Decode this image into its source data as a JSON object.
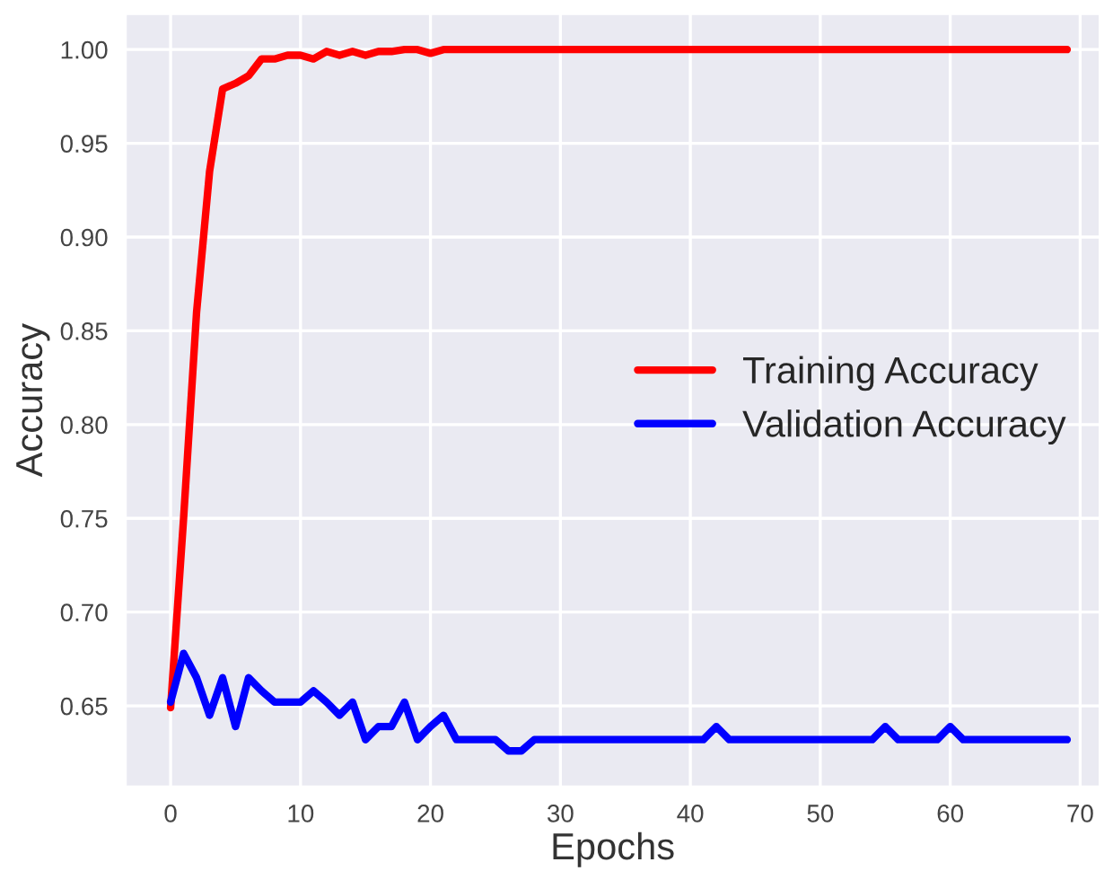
{
  "chart_data": {
    "type": "line",
    "xlabel": "Epochs",
    "ylabel": "Accuracy",
    "x": [
      0,
      1,
      2,
      3,
      4,
      5,
      6,
      7,
      8,
      9,
      10,
      11,
      12,
      13,
      14,
      15,
      16,
      17,
      18,
      19,
      20,
      21,
      22,
      23,
      24,
      25,
      26,
      27,
      28,
      29,
      30,
      31,
      32,
      33,
      34,
      35,
      36,
      37,
      38,
      39,
      40,
      41,
      42,
      43,
      44,
      45,
      46,
      47,
      48,
      49,
      50,
      51,
      52,
      53,
      54,
      55,
      56,
      57,
      58,
      59,
      60,
      61,
      62,
      63,
      64,
      65,
      66,
      67,
      68,
      69
    ],
    "series": [
      {
        "name": "Training Accuracy",
        "color": "#ff0000",
        "values": [
          0.649,
          0.75,
          0.86,
          0.935,
          0.979,
          0.982,
          0.986,
          0.995,
          0.995,
          0.997,
          0.997,
          0.995,
          0.999,
          0.997,
          0.999,
          0.997,
          0.999,
          0.999,
          1.0,
          1.0,
          0.998,
          1.0,
          1.0,
          1.0,
          1.0,
          1.0,
          1.0,
          1.0,
          1.0,
          1.0,
          1.0,
          1.0,
          1.0,
          1.0,
          1.0,
          1.0,
          1.0,
          1.0,
          1.0,
          1.0,
          1.0,
          1.0,
          1.0,
          1.0,
          1.0,
          1.0,
          1.0,
          1.0,
          1.0,
          1.0,
          1.0,
          1.0,
          1.0,
          1.0,
          1.0,
          1.0,
          1.0,
          1.0,
          1.0,
          1.0,
          1.0,
          1.0,
          1.0,
          1.0,
          1.0,
          1.0,
          1.0,
          1.0,
          1.0,
          1.0
        ]
      },
      {
        "name": "Validation Accuracy",
        "color": "#0000ff",
        "values": [
          0.652,
          0.678,
          0.665,
          0.645,
          0.665,
          0.639,
          0.665,
          0.658,
          0.652,
          0.652,
          0.652,
          0.658,
          0.652,
          0.645,
          0.652,
          0.632,
          0.639,
          0.639,
          0.652,
          0.632,
          0.639,
          0.645,
          0.632,
          0.632,
          0.632,
          0.632,
          0.626,
          0.626,
          0.632,
          0.632,
          0.632,
          0.632,
          0.632,
          0.632,
          0.632,
          0.632,
          0.632,
          0.632,
          0.632,
          0.632,
          0.632,
          0.632,
          0.639,
          0.632,
          0.632,
          0.632,
          0.632,
          0.632,
          0.632,
          0.632,
          0.632,
          0.632,
          0.632,
          0.632,
          0.632,
          0.639,
          0.632,
          0.632,
          0.632,
          0.632,
          0.639,
          0.632,
          0.632,
          0.632,
          0.632,
          0.632,
          0.632,
          0.632,
          0.632,
          0.632
        ]
      }
    ],
    "xlim": [
      -3.45,
      71.5
    ],
    "ylim": [
      0.607,
      1.019
    ],
    "xticks": [
      0,
      10,
      20,
      30,
      40,
      50,
      60,
      70
    ],
    "yticks": [
      {
        "value": 0.65,
        "label": "0.65"
      },
      {
        "value": 0.7,
        "label": "0.70"
      },
      {
        "value": 0.75,
        "label": "0.75"
      },
      {
        "value": 0.8,
        "label": "0.80"
      },
      {
        "value": 0.85,
        "label": "0.85"
      },
      {
        "value": 0.9,
        "label": "0.90"
      },
      {
        "value": 0.95,
        "label": "0.95"
      },
      {
        "value": 1.0,
        "label": "1.00"
      }
    ],
    "grid": true,
    "legend": "right",
    "line_style": "solid"
  }
}
